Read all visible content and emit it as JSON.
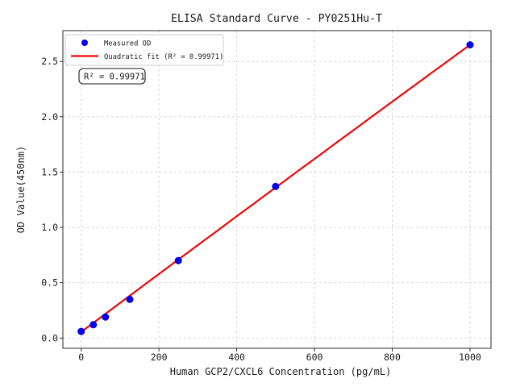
{
  "chart_data": {
    "type": "scatter",
    "title": "ELISA Standard Curve - PY0251Hu-T",
    "xlabel": "Human GCP2/CXCL6 Concentration (pg/mL)",
    "ylabel": "OD Value(450nm)",
    "xlim": [
      -47,
      1054
    ],
    "ylim": [
      -0.0925,
      2.778
    ],
    "x_ticks": [
      0,
      200,
      400,
      600,
      800,
      1000
    ],
    "x_tick_labels": [
      "0",
      "200",
      "400",
      "600",
      "800",
      "1000"
    ],
    "y_ticks": [
      0.0,
      0.5,
      1.0,
      1.5,
      2.0,
      2.5
    ],
    "y_tick_labels": [
      "0.0",
      "0.5",
      "1.0",
      "1.5",
      "2.0",
      "2.5"
    ],
    "grid": true,
    "grid_style": "dashed",
    "legend_position": "upper left",
    "series": [
      {
        "name": "Measured OD",
        "type": "scatter",
        "color": "#0000ee",
        "x": [
          0,
          31.25,
          62.5,
          125,
          250,
          500,
          1000
        ],
        "y": [
          0.06,
          0.12,
          0.19,
          0.35,
          0.7,
          1.37,
          2.65
        ]
      },
      {
        "name": "Quadratic fit (R² = 0.99971)",
        "type": "line",
        "color": "#f00505",
        "fit": {
          "a": -3e-08,
          "b": 0.002625,
          "c": 0.055,
          "x_range": [
            0,
            1000
          ]
        }
      }
    ],
    "annotation": "R² = 0.99971",
    "r_squared": 0.99971
  },
  "colors": {
    "point_blue": "#0000ee",
    "line_red": "#f00505",
    "grid": "#d2d2d2",
    "spine": "#2b2b2b",
    "legend_border": "#cccccc"
  }
}
